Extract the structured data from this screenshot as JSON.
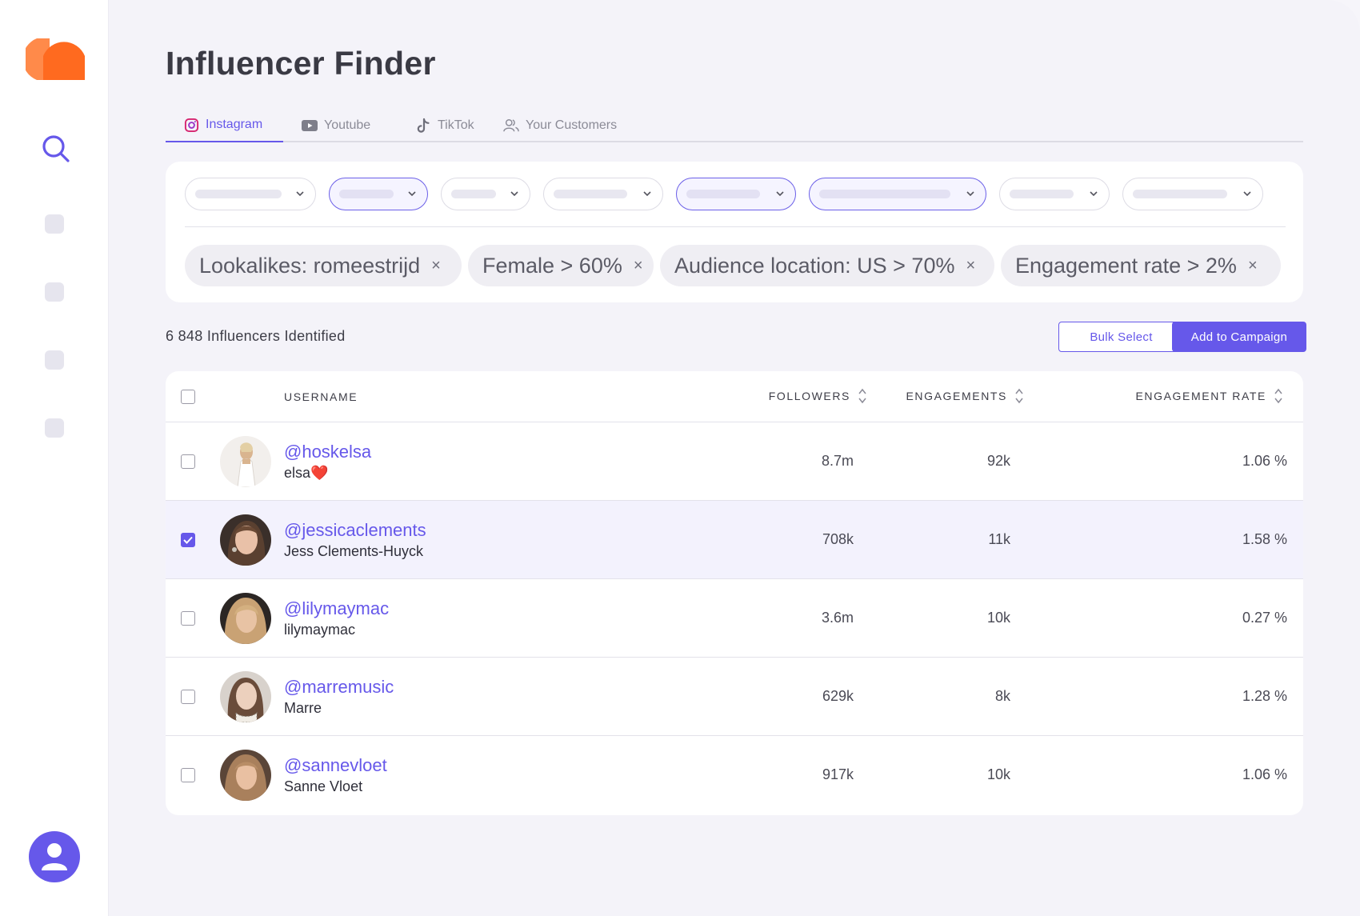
{
  "app": {
    "title": "Influencer Finder",
    "brand_color": "#6658ea",
    "logo_color": "#ff6a1f"
  },
  "sidebar": {
    "icons": [
      "logo-icon",
      "search-icon",
      "nav-placeholder",
      "nav-placeholder",
      "nav-placeholder",
      "nav-placeholder",
      "user-icon"
    ]
  },
  "tabs": [
    {
      "label": "Instagram",
      "icon": "instagram-icon",
      "active": true
    },
    {
      "label": "Youtube",
      "icon": "youtube-icon",
      "active": false
    },
    {
      "label": "TikTok",
      "icon": "tiktok-icon",
      "active": false
    },
    {
      "label": "Your Customers",
      "icon": "people-icon",
      "active": false
    }
  ],
  "filters": {
    "chips": [
      {
        "label": "Lookalikes: romeestrijd"
      },
      {
        "label": "Female > 60%"
      },
      {
        "label": "Audience location: US > 70%"
      },
      {
        "label": "Engagement rate > 2%"
      }
    ],
    "chip_remove": "×"
  },
  "results": {
    "count_label": "6 848 Influencers Identified",
    "bulk_select_label": "Bulk Select",
    "add_to_campaign_label": "Add to Campaign"
  },
  "table": {
    "columns": {
      "username": "USERNAME",
      "followers": "FOLLOWERS",
      "engagements": "ENGAGEMENTS",
      "engagement_rate": "ENGAGEMENT RATE"
    },
    "rows": [
      {
        "handle": "@hoskelsa",
        "name": "elsa❤️",
        "followers": "8.7m",
        "engagements": "92k",
        "rate": "1.06 %",
        "checked": false
      },
      {
        "handle": "@jessicaclements",
        "name": "Jess Clements-Huyck",
        "followers": "708k",
        "engagements": "11k",
        "rate": "1.58 %",
        "checked": true
      },
      {
        "handle": "@lilymaymac",
        "name": "lilymaymac",
        "followers": "3.6m",
        "engagements": "10k",
        "rate": "0.27 %",
        "checked": false
      },
      {
        "handle": "@marremusic",
        "name": "Marre",
        "followers": "629k",
        "engagements": "8k",
        "rate": "1.28 %",
        "checked": false
      },
      {
        "handle": "@sannevloet",
        "name": "Sanne Vloet",
        "followers": "917k",
        "engagements": "10k",
        "rate": "1.06 %",
        "checked": false
      }
    ]
  }
}
